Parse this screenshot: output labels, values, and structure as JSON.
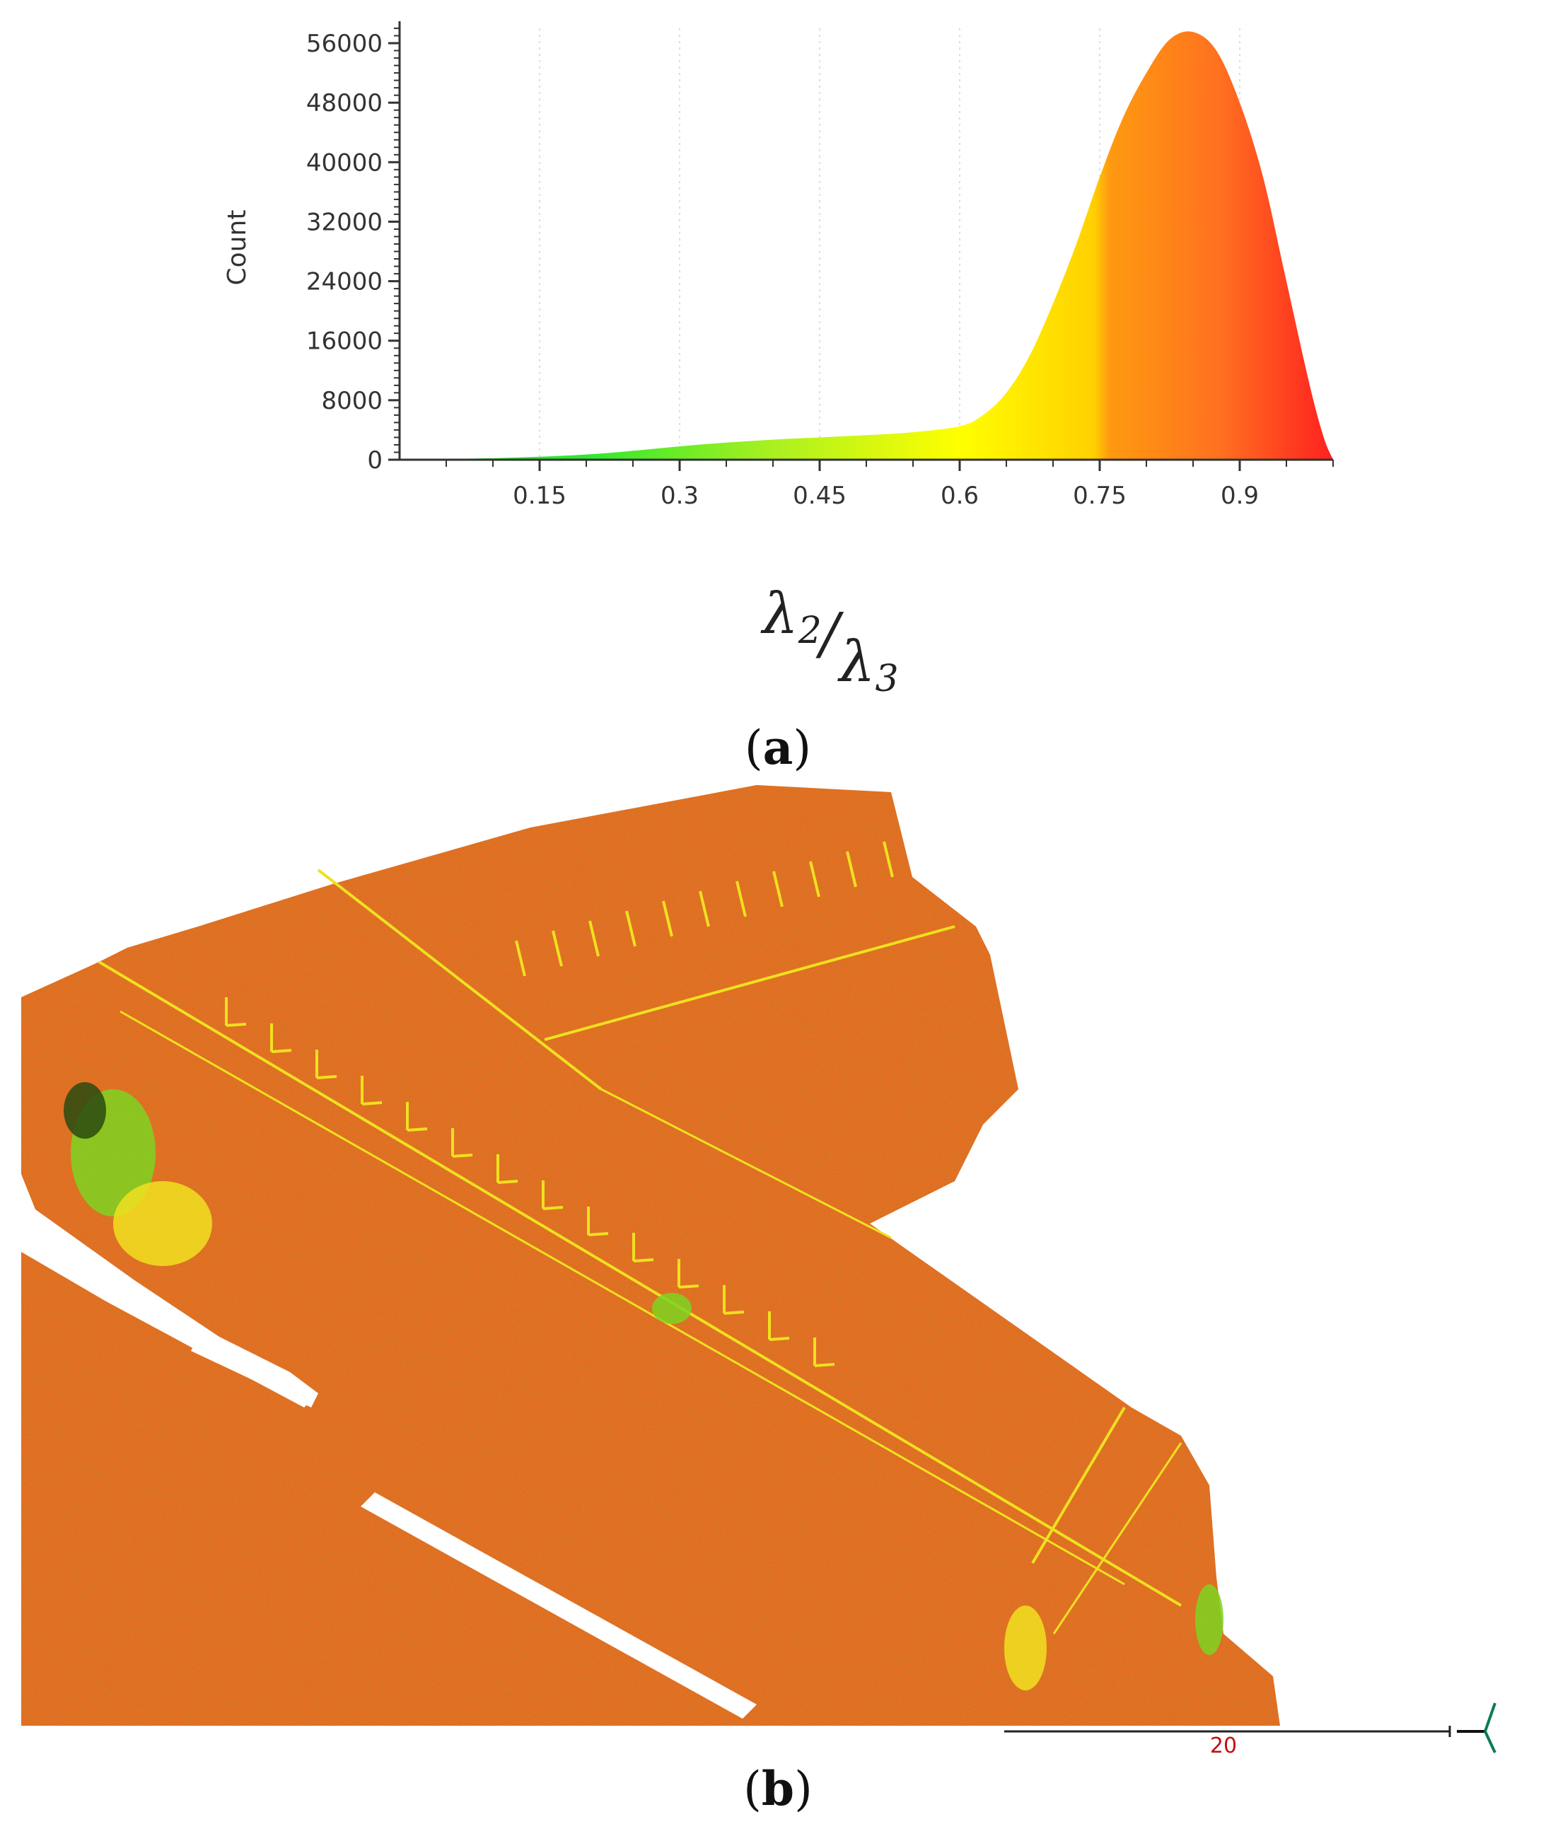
{
  "chart_data": {
    "type": "area",
    "title": "",
    "ylabel": "Count",
    "xlabel": "λ2/λ3",
    "xlabel_parts": {
      "num": "λ",
      "num_sub": "2",
      "sep": "/",
      "den": "λ",
      "den_sub": "3"
    },
    "xlim": [
      0,
      1.0
    ],
    "ylim": [
      0,
      58000
    ],
    "xticks": [
      0.15,
      0.3,
      0.45,
      0.6,
      0.75,
      0.9
    ],
    "xtick_labels": [
      "0.15",
      "0.3",
      "0.45",
      "0.6",
      "0.75",
      "0.9"
    ],
    "yticks": [
      0,
      8000,
      16000,
      24000,
      32000,
      40000,
      48000,
      56000
    ],
    "ytick_labels": [
      "0",
      "8000",
      "16000",
      "24000",
      "32000",
      "40000",
      "48000",
      "56000"
    ],
    "grid": true,
    "colormap": [
      "#2ee82e",
      "#aaf020",
      "#ffff00",
      "#ffd000",
      "#ff9a10",
      "#ff7020",
      "#ff2020"
    ],
    "x": [
      0.0,
      0.05,
      0.1,
      0.15,
      0.2,
      0.25,
      0.3,
      0.35,
      0.4,
      0.45,
      0.5,
      0.55,
      0.6,
      0.625,
      0.65,
      0.675,
      0.7,
      0.725,
      0.75,
      0.775,
      0.8,
      0.825,
      0.85,
      0.875,
      0.9,
      0.925,
      0.95,
      0.975,
      0.99,
      1.0
    ],
    "y": [
      0,
      100,
      200,
      400,
      700,
      1200,
      1800,
      2300,
      2700,
      3000,
      3300,
      3700,
      4500,
      6000,
      9000,
      14000,
      21000,
      29000,
      38000,
      46000,
      52000,
      56500,
      57500,
      55000,
      48000,
      38000,
      24000,
      10000,
      3000,
      0
    ]
  },
  "panels": {
    "a": "a",
    "b": "b"
  },
  "pointcloud": {
    "colors": {
      "base": "#e56a1c",
      "edge": "#f0e020",
      "green": "#7ed321",
      "dark": "#2a4a10"
    },
    "scale_label": "20",
    "scale_label_color": "#c01010"
  }
}
